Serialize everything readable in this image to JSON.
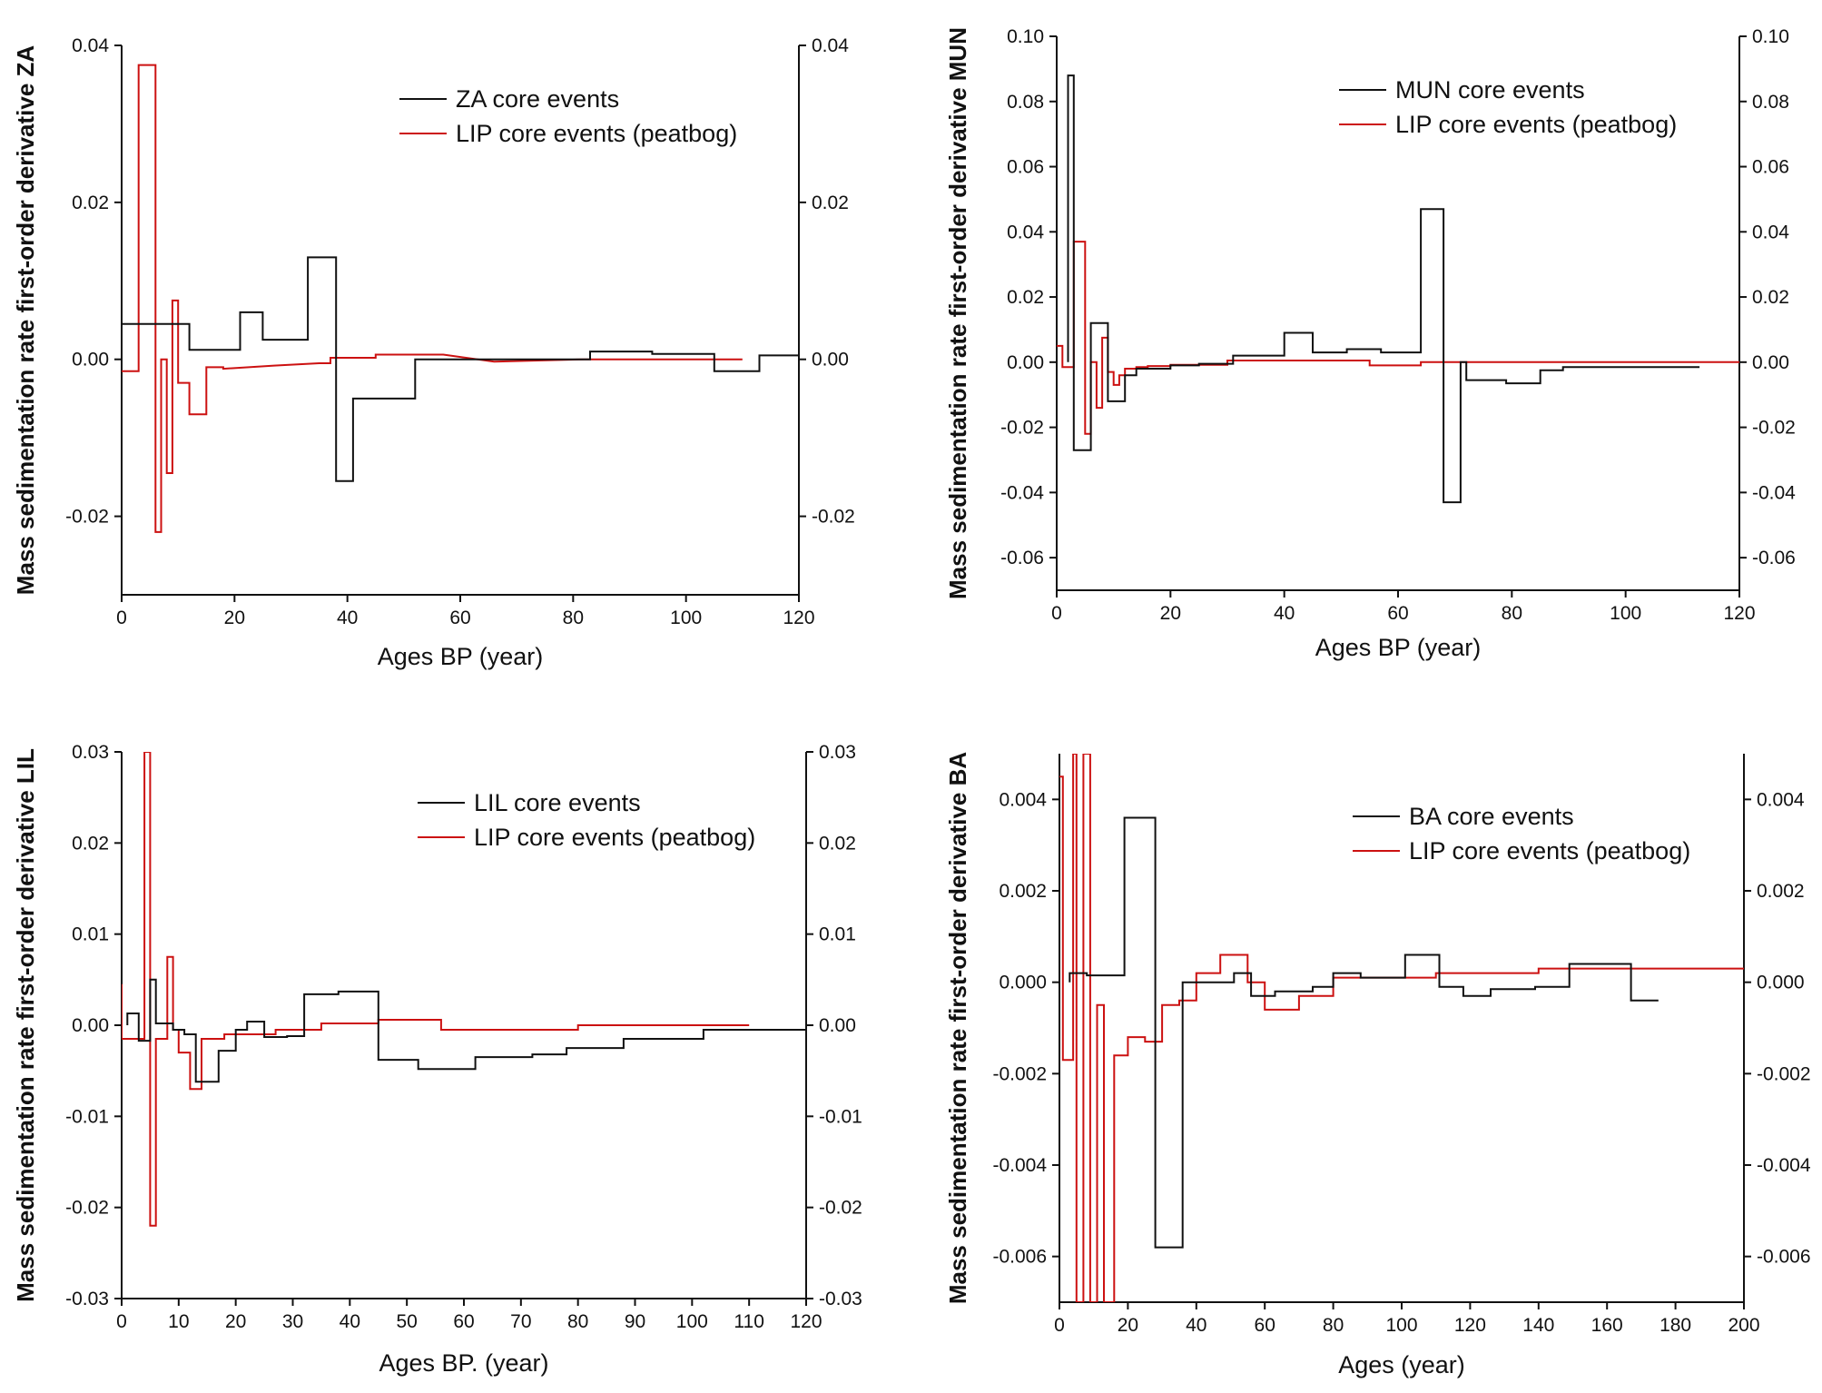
{
  "chart_data": [
    {
      "type": "line",
      "panel": "ZA",
      "xlabel": "Ages BP (year)",
      "ylabel": "Mass sedimentation rate first-order  derivative  ZA",
      "xlim": [
        0,
        120
      ],
      "ylim": [
        -0.03,
        0.04
      ],
      "xticks": [
        "0",
        "20",
        "40",
        "60",
        "80",
        "100",
        "120"
      ],
      "yticks": [
        "-0.02",
        "0.00",
        "0.02",
        "0.04"
      ],
      "legend_position": "top-right",
      "series": [
        {
          "name": "ZA core events",
          "color": "#111111",
          "x": [
            0,
            12,
            12,
            21,
            21,
            25,
            25,
            33,
            33,
            38,
            38,
            41,
            41,
            52,
            52,
            83,
            83,
            94,
            94,
            105,
            105,
            113,
            113,
            120
          ],
          "y": [
            0.0045,
            0.0045,
            0.0012,
            0.0012,
            0.006,
            0.006,
            0.0025,
            0.0025,
            0.013,
            0.013,
            -0.0155,
            -0.0155,
            -0.005,
            -0.005,
            0.0,
            0.0,
            0.001,
            0.001,
            0.0007,
            0.0007,
            -0.0015,
            -0.0015,
            0.0005,
            0.0005
          ]
        },
        {
          "name": "LIP core events (peatbog)",
          "color": "#cc1111",
          "x": [
            0,
            3,
            3,
            6,
            6,
            7,
            7,
            8,
            8,
            9,
            9,
            10,
            10,
            12,
            12,
            15,
            15,
            18,
            18,
            27,
            35,
            37,
            37,
            45,
            45,
            50,
            50,
            57,
            66,
            66,
            82,
            82,
            110
          ],
          "y": [
            -0.0015,
            -0.0015,
            0.0375,
            0.0375,
            -0.022,
            -0.022,
            0.0,
            0.0,
            -0.0145,
            -0.0145,
            0.0075,
            0.0075,
            -0.003,
            -0.003,
            -0.007,
            -0.007,
            -0.001,
            -0.001,
            -0.0012,
            -0.0008,
            -0.0005,
            -0.0005,
            0.0002,
            0.0002,
            0.0006,
            0.0006,
            0.0006,
            0.0006,
            -0.0003,
            -0.0003,
            0.0,
            0.0,
            0.0
          ]
        }
      ]
    },
    {
      "type": "line",
      "panel": "MUN",
      "xlabel": "Ages BP (year)",
      "ylabel": "Mass sedimentation rate first-order  derivative  MUN",
      "xlim": [
        0,
        120
      ],
      "ylim": [
        -0.07,
        0.1
      ],
      "xticks": [
        "0",
        "20",
        "40",
        "60",
        "80",
        "100",
        "120"
      ],
      "yticks": [
        "-0.06",
        "-0.04",
        "-0.02",
        "0.00",
        "0.02",
        "0.04",
        "0.06",
        "0.08",
        "0.10"
      ],
      "yticks_right": [
        "-0.06",
        "-0.04",
        "-0.02",
        "0.00",
        "0.02",
        "0.04",
        "0.06",
        "0.08",
        "0.10"
      ],
      "legend_position": "top-right",
      "series": [
        {
          "name": "MUN core events",
          "color": "#111111",
          "x": [
            2,
            2,
            3,
            3,
            6,
            6,
            9,
            9,
            12,
            12,
            14,
            14,
            20,
            20,
            25,
            25,
            31,
            31,
            40,
            40,
            45,
            45,
            51,
            51,
            57,
            57,
            64,
            64,
            68,
            68,
            71,
            71,
            72,
            72,
            79,
            79,
            85,
            85,
            89,
            89,
            96,
            96,
            113
          ],
          "y": [
            0.0,
            0.088,
            0.088,
            -0.027,
            -0.027,
            0.012,
            0.012,
            -0.012,
            -0.012,
            -0.004,
            -0.004,
            -0.002,
            -0.002,
            -0.001,
            -0.001,
            -0.0005,
            -0.0005,
            0.002,
            0.002,
            0.009,
            0.009,
            0.003,
            0.003,
            0.004,
            0.004,
            0.003,
            0.003,
            0.047,
            0.047,
            -0.043,
            -0.043,
            0.0,
            0.0,
            -0.0055,
            -0.0055,
            -0.0065,
            -0.0065,
            -0.0025,
            -0.0025,
            -0.0015,
            -0.0015,
            -0.0015,
            -0.0015
          ]
        },
        {
          "name": "LIP core events (peatbog)",
          "color": "#cc1111",
          "x": [
            0,
            1,
            1,
            3,
            3,
            5,
            5,
            6,
            6,
            7,
            7,
            8,
            8,
            9,
            9,
            10,
            10,
            11,
            11,
            12,
            12,
            14,
            14,
            16,
            16,
            20,
            20,
            30,
            30,
            55,
            55,
            64,
            64,
            75,
            75,
            120
          ],
          "y": [
            0.005,
            0.005,
            -0.0015,
            -0.0015,
            0.037,
            0.037,
            -0.022,
            -0.022,
            0.0,
            0.0,
            -0.014,
            -0.014,
            0.0075,
            0.0075,
            -0.003,
            -0.003,
            -0.007,
            -0.007,
            -0.004,
            -0.004,
            -0.002,
            -0.002,
            -0.0015,
            -0.0015,
            -0.0012,
            -0.0012,
            -0.0008,
            -0.0008,
            0.0005,
            0.0005,
            -0.001,
            -0.001,
            0.0,
            0.0,
            0.0,
            0.0
          ]
        }
      ]
    },
    {
      "type": "line",
      "panel": "LIL",
      "xlabel": "Ages BP. (year)",
      "ylabel": "Mass sedimentation rate first-order  derivative LIL",
      "xlim": [
        0,
        120
      ],
      "ylim": [
        -0.03,
        0.03
      ],
      "xticks": [
        "0",
        "10",
        "20",
        "30",
        "40",
        "50",
        "60",
        "70",
        "80",
        "90",
        "100",
        "110",
        "120"
      ],
      "yticks": [
        "-0.03",
        "-0.02",
        "-0.01",
        "0.00",
        "0.01",
        "0.02",
        "0.03"
      ],
      "legend_position": "top-right",
      "series": [
        {
          "name": "LIL core events",
          "color": "#111111",
          "x": [
            1,
            1,
            3,
            3,
            5,
            5,
            6,
            6,
            9,
            9,
            11,
            11,
            13,
            13,
            17,
            17,
            20,
            20,
            22,
            22,
            25,
            25,
            29,
            29,
            32,
            32,
            38,
            38,
            45,
            45,
            52,
            52,
            62,
            62,
            72,
            72,
            78,
            78,
            88,
            88,
            102,
            102,
            120
          ],
          "y": [
            0.0,
            0.0013,
            0.0013,
            -0.0017,
            -0.0017,
            0.005,
            0.005,
            0.0002,
            0.0002,
            -0.0005,
            -0.0005,
            -0.001,
            -0.001,
            -0.0062,
            -0.0062,
            -0.0028,
            -0.0028,
            -0.0005,
            -0.0005,
            0.0004,
            0.0004,
            -0.0013,
            -0.0013,
            -0.0012,
            -0.0012,
            0.0034,
            0.0034,
            0.0037,
            0.0037,
            -0.0038,
            -0.0038,
            -0.0048,
            -0.0048,
            -0.0035,
            -0.0035,
            -0.0032,
            -0.0032,
            -0.0025,
            -0.0025,
            -0.0015,
            -0.0015,
            -0.0005,
            -0.0005
          ]
        },
        {
          "name": "LIP core events (peatbog)",
          "color": "#cc1111",
          "x": [
            0,
            0,
            1,
            1,
            4,
            4,
            5,
            5,
            6,
            6,
            8,
            8,
            9,
            9,
            10,
            10,
            12,
            12,
            14,
            14,
            18,
            18,
            27,
            27,
            35,
            35,
            45,
            45,
            56,
            56,
            80,
            80,
            110
          ],
          "y": [
            0.0045,
            -0.0015,
            -0.0015,
            -0.0015,
            -0.0015,
            0.03,
            0.03,
            -0.022,
            -0.022,
            -0.0015,
            -0.0015,
            0.0075,
            0.0075,
            -0.0005,
            -0.0005,
            -0.003,
            -0.003,
            -0.007,
            -0.007,
            -0.0015,
            -0.0015,
            -0.001,
            -0.001,
            -0.0005,
            -0.0005,
            0.0002,
            0.0002,
            0.0006,
            0.0006,
            -0.0005,
            -0.0005,
            0.0,
            0.0
          ]
        }
      ]
    },
    {
      "type": "line",
      "panel": "BA",
      "xlabel": "Ages (year)",
      "ylabel": "Mass sedimentation rate first-order  derivative BA",
      "xlim": [
        0,
        200
      ],
      "ylim": [
        -0.007,
        0.005
      ],
      "xticks": [
        "0",
        "20",
        "40",
        "60",
        "80",
        "100",
        "120",
        "140",
        "160",
        "180",
        "200"
      ],
      "yticks": [
        "-0.006",
        "-0.004",
        "-0.002",
        "0.000",
        "0.002",
        "0.004"
      ],
      "legend_position": "top-right",
      "series": [
        {
          "name": "BA core events",
          "color": "#111111",
          "x": [
            3,
            3,
            8,
            8,
            19,
            19,
            28,
            28,
            36,
            36,
            51,
            51,
            56,
            56,
            63,
            63,
            74,
            74,
            80,
            80,
            88,
            88,
            101,
            101,
            111,
            111,
            118,
            118,
            126,
            126,
            139,
            139,
            149,
            149,
            167,
            167,
            175,
            175
          ],
          "y": [
            0.0,
            0.0002,
            0.0002,
            0.00015,
            0.00015,
            0.0036,
            0.0036,
            -0.0058,
            -0.0058,
            0.0,
            0.0,
            0.0002,
            0.0002,
            -0.0003,
            -0.0003,
            -0.0002,
            -0.0002,
            -0.0001,
            -0.0001,
            0.0002,
            0.0002,
            0.0001,
            0.0001,
            0.0006,
            0.0006,
            -0.0001,
            -0.0001,
            -0.0003,
            -0.0003,
            -0.00015,
            -0.00015,
            -0.0001,
            -0.0001,
            0.0004,
            0.0004,
            -0.0004,
            -0.0004,
            -0.0004
          ]
        },
        {
          "name": "LIP core events (peatbog)",
          "color": "#cc1111",
          "x": [
            0,
            1,
            1,
            4,
            4,
            5,
            5,
            7,
            7,
            9,
            9,
            11,
            11,
            13,
            13,
            16,
            16,
            20,
            20,
            25,
            25,
            30,
            30,
            35,
            35,
            40,
            40,
            47,
            47,
            55,
            55,
            60,
            60,
            70,
            70,
            80,
            80,
            110,
            110,
            140,
            140,
            200
          ],
          "y": [
            0.0045,
            0.0045,
            -0.0017,
            -0.0017,
            0.005,
            0.005,
            -0.007,
            -0.007,
            0.005,
            0.005,
            -0.007,
            -0.007,
            -0.0005,
            -0.0005,
            -0.007,
            -0.007,
            -0.0016,
            -0.0016,
            -0.0012,
            -0.0012,
            -0.0013,
            -0.0013,
            -0.0005,
            -0.0005,
            -0.0004,
            -0.0004,
            0.0002,
            0.0002,
            0.0006,
            0.0006,
            0.0,
            0.0,
            -0.0006,
            -0.0006,
            -0.0003,
            -0.0003,
            0.0001,
            0.0001,
            0.0002,
            0.0002,
            0.0003,
            0.0003
          ]
        }
      ]
    }
  ]
}
